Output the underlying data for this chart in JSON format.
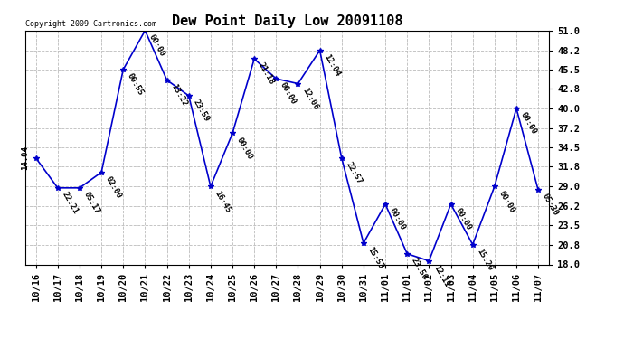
{
  "title": "Dew Point Daily Low 20091108",
  "copyright": "Copyright 2009 Cartronics.com",
  "ylim": [
    18.0,
    51.0
  ],
  "yticks": [
    18.0,
    20.8,
    23.5,
    26.2,
    29.0,
    31.8,
    34.5,
    37.2,
    40.0,
    42.8,
    45.5,
    48.2,
    51.0
  ],
  "points": [
    {
      "xi": 0,
      "x": "10/16",
      "y": 33.0,
      "label": "14:04"
    },
    {
      "xi": 1,
      "x": "10/17",
      "y": 28.8,
      "label": "22:21"
    },
    {
      "xi": 2,
      "x": "10/18",
      "y": 28.8,
      "label": "05:17"
    },
    {
      "xi": 3,
      "x": "10/19",
      "y": 31.0,
      "label": "02:00"
    },
    {
      "xi": 4,
      "x": "10/20",
      "y": 45.5,
      "label": "00:55"
    },
    {
      "xi": 5,
      "x": "10/21",
      "y": 51.0,
      "label": "00:00"
    },
    {
      "xi": 6,
      "x": "10/22",
      "y": 44.0,
      "label": "13:22"
    },
    {
      "xi": 7,
      "x": "10/23",
      "y": 41.8,
      "label": "23:59"
    },
    {
      "xi": 8,
      "x": "10/24",
      "y": 29.0,
      "label": "16:45"
    },
    {
      "xi": 9,
      "x": "10/25",
      "y": 36.5,
      "label": "00:00"
    },
    {
      "xi": 10,
      "x": "10/26",
      "y": 47.0,
      "label": "21:18"
    },
    {
      "xi": 11,
      "x": "10/27",
      "y": 44.2,
      "label": "00:00"
    },
    {
      "xi": 12,
      "x": "10/28",
      "y": 43.5,
      "label": "12:06"
    },
    {
      "xi": 13,
      "x": "10/29",
      "y": 48.2,
      "label": "12:04"
    },
    {
      "xi": 14,
      "x": "10/30",
      "y": 33.0,
      "label": "22:57"
    },
    {
      "xi": 15,
      "x": "10/31",
      "y": 21.0,
      "label": "15:53"
    },
    {
      "xi": 16,
      "x": "11/01",
      "y": 26.5,
      "label": "00:00"
    },
    {
      "xi": 17,
      "x": "11/01",
      "y": 19.5,
      "label": "23:50"
    },
    {
      "xi": 18,
      "x": "11/02",
      "y": 18.5,
      "label": "12:11"
    },
    {
      "xi": 19,
      "x": "11/03",
      "y": 26.5,
      "label": "00:00"
    },
    {
      "xi": 20,
      "x": "11/04",
      "y": 20.8,
      "label": "15:20"
    },
    {
      "xi": 21,
      "x": "11/05",
      "y": 29.0,
      "label": "00:00"
    },
    {
      "xi": 22,
      "x": "11/06",
      "y": 40.0,
      "label": "00:00"
    },
    {
      "xi": 23,
      "x": "11/07",
      "y": 28.5,
      "label": "05:30"
    }
  ],
  "xtick_labels": [
    "10/16",
    "10/17",
    "10/18",
    "10/19",
    "10/20",
    "10/21",
    "10/22",
    "10/23",
    "10/24",
    "10/25",
    "10/26",
    "10/27",
    "10/28",
    "10/29",
    "10/30",
    "10/31",
    "11/01",
    "11/01",
    "11/02",
    "11/03",
    "11/04",
    "11/05",
    "11/06",
    "11/07"
  ],
  "line_color": "#0000CC",
  "bg_color": "#FFFFFF",
  "grid_color": "#BBBBBB",
  "title_fontsize": 11,
  "label_fontsize": 6.5,
  "tick_fontsize": 7.5,
  "copyright_fontsize": 6.0
}
